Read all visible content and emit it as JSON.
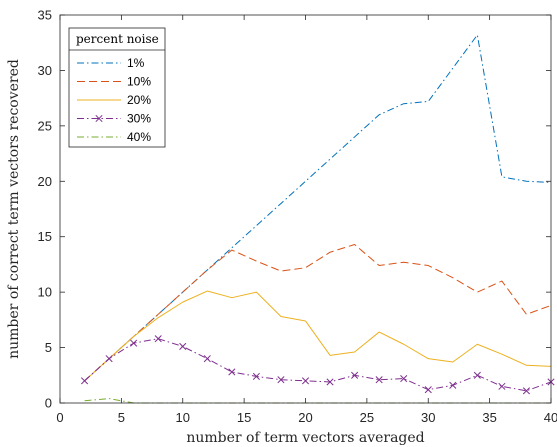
{
  "chart_data": {
    "type": "line",
    "xlabel": "number of term vectors averaged",
    "ylabel": "number of correct term vectors recovered",
    "xlim": [
      0,
      40
    ],
    "ylim": [
      0,
      35
    ],
    "xticks": [
      0,
      5,
      10,
      15,
      20,
      25,
      30,
      35,
      40
    ],
    "yticks": [
      0,
      5,
      10,
      15,
      20,
      25,
      30,
      35
    ],
    "grid": false,
    "legend": {
      "title": "percent noise",
      "position": "top-left"
    },
    "series": [
      {
        "name": "1%",
        "color": "#0072BD",
        "style": "dashdot",
        "marker": "none",
        "x": [
          2,
          4,
          6,
          8,
          10,
          12,
          14,
          16,
          18,
          20,
          22,
          24,
          26,
          28,
          30,
          32,
          34,
          36,
          38,
          40
        ],
        "y": [
          2,
          4,
          6,
          8,
          10,
          12,
          14,
          16,
          18,
          20,
          22,
          24,
          26,
          27,
          27.2,
          30.2,
          33.2,
          20.4,
          20,
          19.9
        ]
      },
      {
        "name": "10%",
        "color": "#D95319",
        "style": "dashed",
        "marker": "none",
        "x": [
          2,
          4,
          6,
          8,
          10,
          12,
          14,
          16,
          18,
          20,
          22,
          24,
          26,
          28,
          30,
          32,
          34,
          36,
          38,
          40
        ],
        "y": [
          2,
          4,
          6,
          8,
          10,
          12,
          13.8,
          12.8,
          11.9,
          12.2,
          13.6,
          14.3,
          12.4,
          12.7,
          12.4,
          11.3,
          10,
          11,
          8,
          8.8
        ]
      },
      {
        "name": "20%",
        "color": "#EDB120",
        "style": "solid",
        "marker": "none",
        "x": [
          2,
          4,
          6,
          8,
          10,
          12,
          14,
          16,
          18,
          20,
          22,
          24,
          26,
          28,
          30,
          32,
          34,
          36,
          38,
          40
        ],
        "y": [
          2,
          4,
          6,
          7.7,
          9.1,
          10.1,
          9.5,
          10,
          7.8,
          7.4,
          4.3,
          4.6,
          6.4,
          5.3,
          4,
          3.7,
          5.3,
          4.4,
          3.4,
          3.3
        ]
      },
      {
        "name": "30%",
        "color": "#7E2F8E",
        "style": "dashdot",
        "marker": "x",
        "x": [
          2,
          4,
          6,
          8,
          10,
          12,
          14,
          16,
          18,
          20,
          22,
          24,
          26,
          28,
          30,
          32,
          34,
          36,
          38,
          40
        ],
        "y": [
          2,
          4,
          5.4,
          5.8,
          5.1,
          4,
          2.8,
          2.4,
          2.1,
          2,
          1.9,
          2.5,
          2.1,
          2.2,
          1.2,
          1.6,
          2.5,
          1.5,
          1.1,
          1.9
        ]
      },
      {
        "name": "40%",
        "color": "#77AC30",
        "style": "dashdot",
        "marker": "none",
        "x": [
          2,
          4,
          6,
          8,
          10,
          12,
          14,
          16,
          18,
          20,
          22,
          24,
          26,
          28,
          30,
          32,
          34,
          36,
          38,
          40
        ],
        "y": [
          0.2,
          0.4,
          0,
          0,
          0,
          0,
          0,
          0,
          0,
          0,
          0,
          0,
          0,
          0,
          0,
          0,
          0,
          0,
          0,
          0
        ]
      }
    ]
  }
}
